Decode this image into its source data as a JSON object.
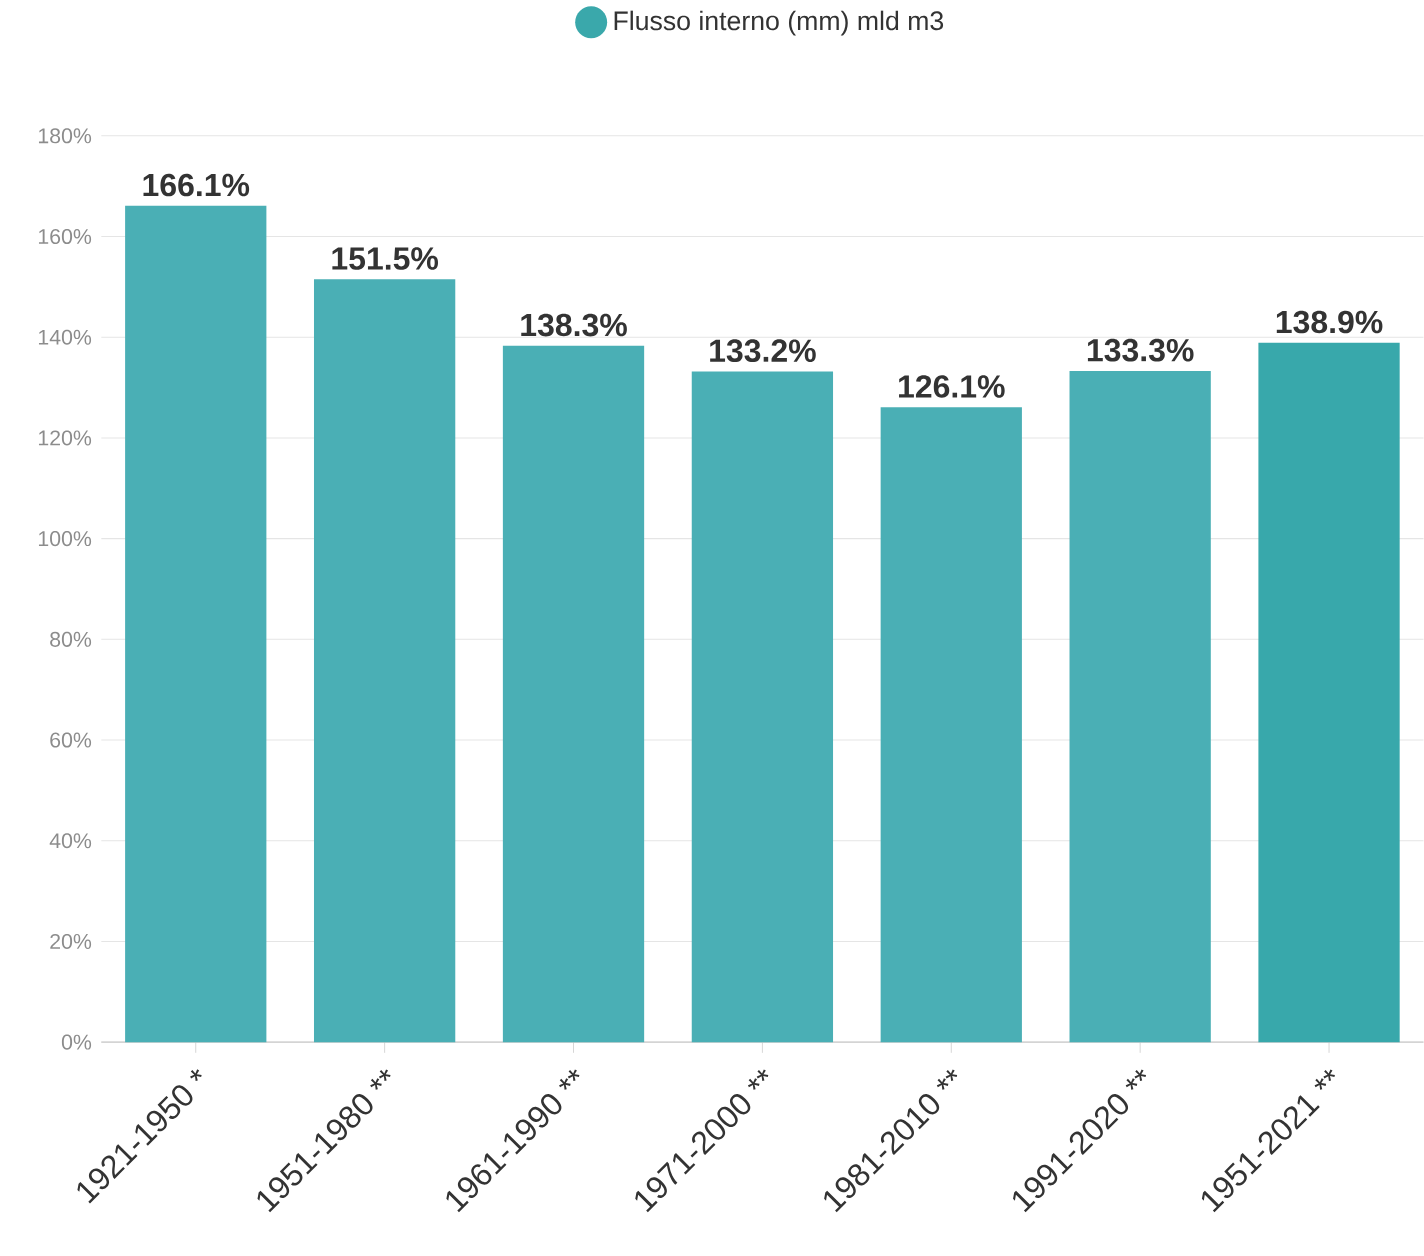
{
  "chart_data": {
    "type": "bar",
    "categories": [
      "1921-1950 *",
      "1951-1980 **",
      "1961-1990 **",
      "1971-2000 **",
      "1981-2010 **",
      "1991-2020 **",
      "1951-2021 **"
    ],
    "series": [
      {
        "name": "Flusso interno (mm) mld m3",
        "color": "#3aa8ab",
        "values": [
          166.1,
          151.5,
          138.3,
          133.2,
          126.1,
          133.3,
          138.9
        ]
      }
    ],
    "colors": [
      "#4aafb5",
      "#4aafb5",
      "#4aafb5",
      "#4aafb5",
      "#4aafb5",
      "#4aafb5",
      "#38a8ab"
    ],
    "value_labels": [
      "166.1%",
      "151.5%",
      "138.3%",
      "133.2%",
      "126.1%",
      "133.3%",
      "138.9%"
    ],
    "ylim": [
      0,
      180
    ],
    "yticks": [
      {
        "value": 0,
        "label": "0%"
      },
      {
        "value": 20,
        "label": "20%"
      },
      {
        "value": 40,
        "label": "40%"
      },
      {
        "value": 60,
        "label": "60%"
      },
      {
        "value": 80,
        "label": "80%"
      },
      {
        "value": 100,
        "label": "100%"
      },
      {
        "value": 120,
        "label": "120%"
      },
      {
        "value": 140,
        "label": "140%"
      },
      {
        "value": 160,
        "label": "160%"
      },
      {
        "value": 180,
        "label": "180%"
      }
    ],
    "grid": "y",
    "legend": "top"
  }
}
